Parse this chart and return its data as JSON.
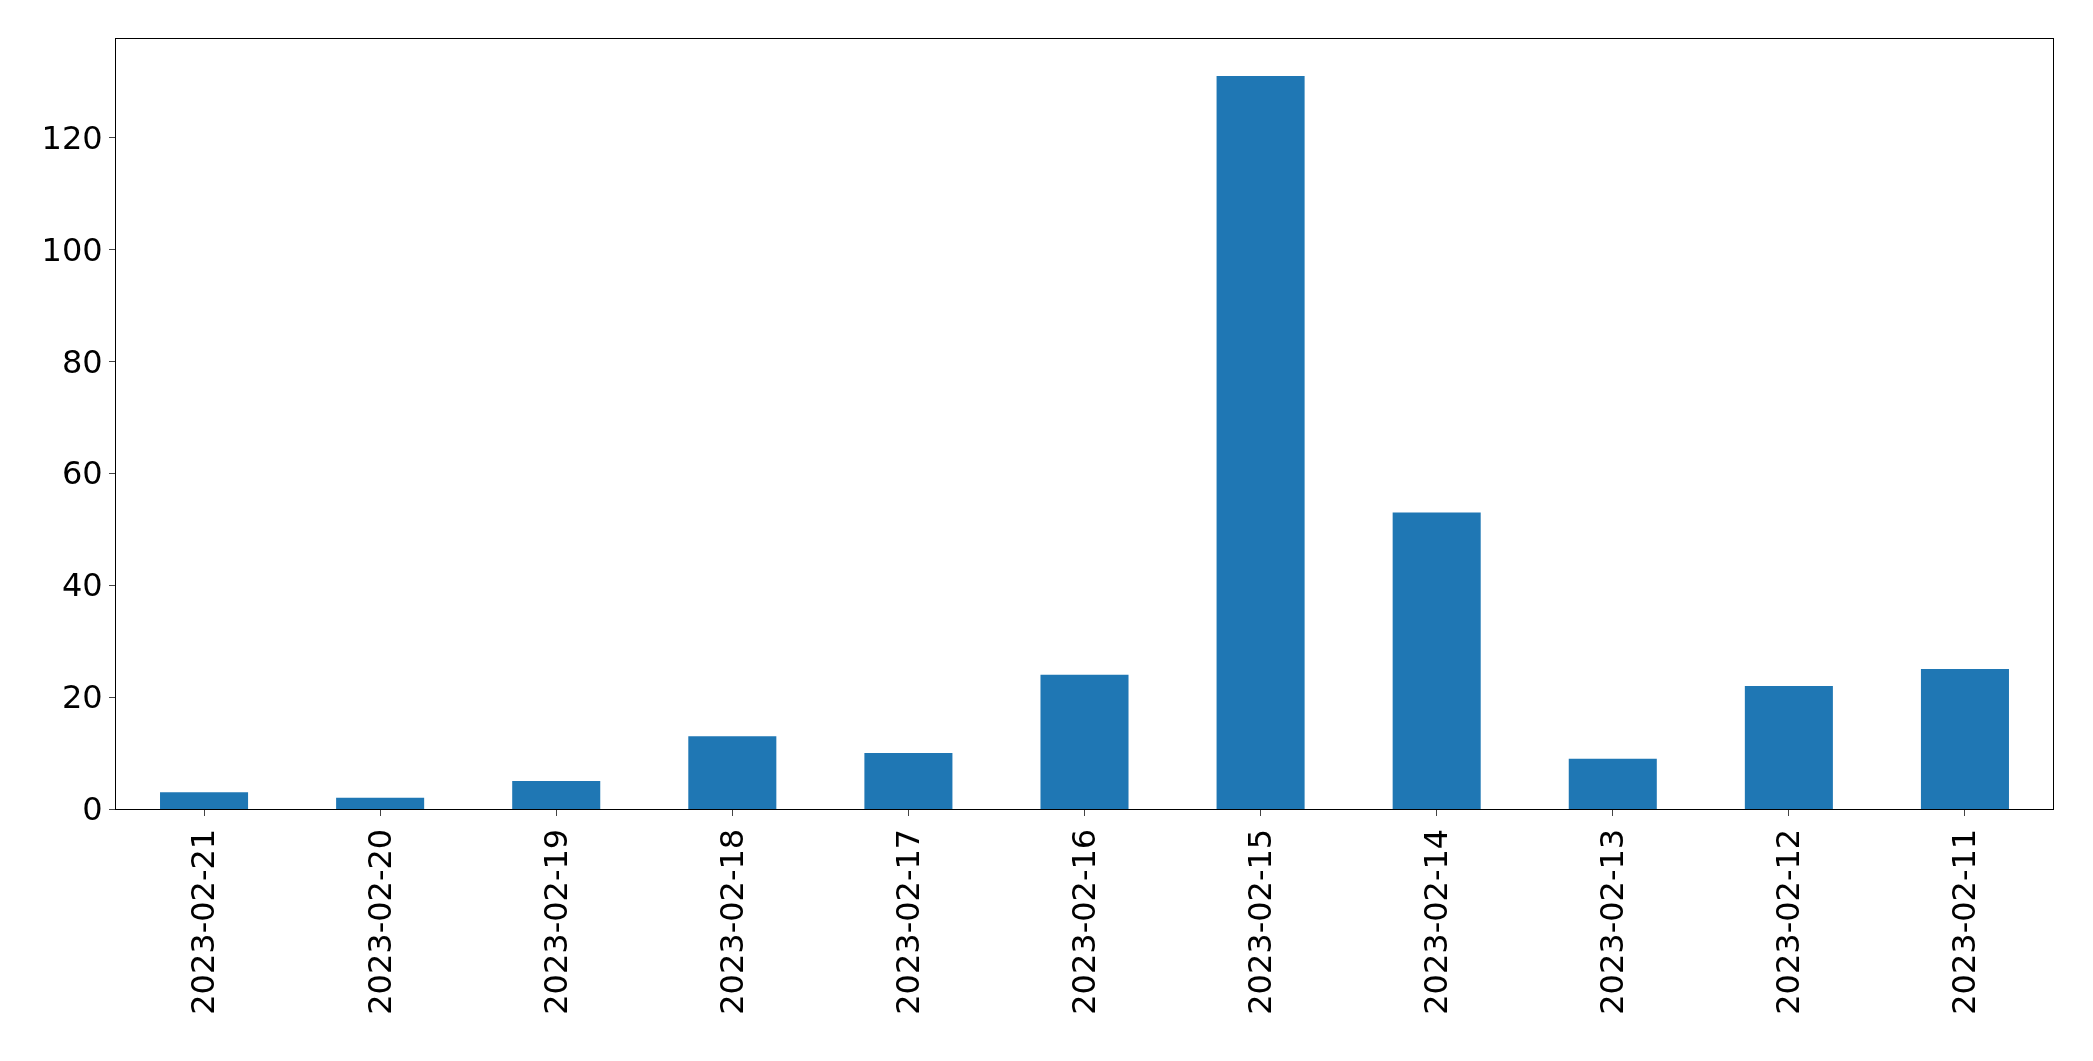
{
  "chart_data": {
    "type": "bar",
    "categories": [
      "2023-02-21",
      "2023-02-20",
      "2023-02-19",
      "2023-02-18",
      "2023-02-17",
      "2023-02-16",
      "2023-02-15",
      "2023-02-14",
      "2023-02-13",
      "2023-02-12",
      "2023-02-11"
    ],
    "values": [
      3,
      2,
      5,
      13,
      10,
      24,
      131,
      53,
      9,
      22,
      25
    ],
    "color": "#1f77b4",
    "ylim": [
      0,
      137.6
    ],
    "yticks": [
      0,
      20,
      40,
      60,
      80,
      100,
      120
    ]
  }
}
